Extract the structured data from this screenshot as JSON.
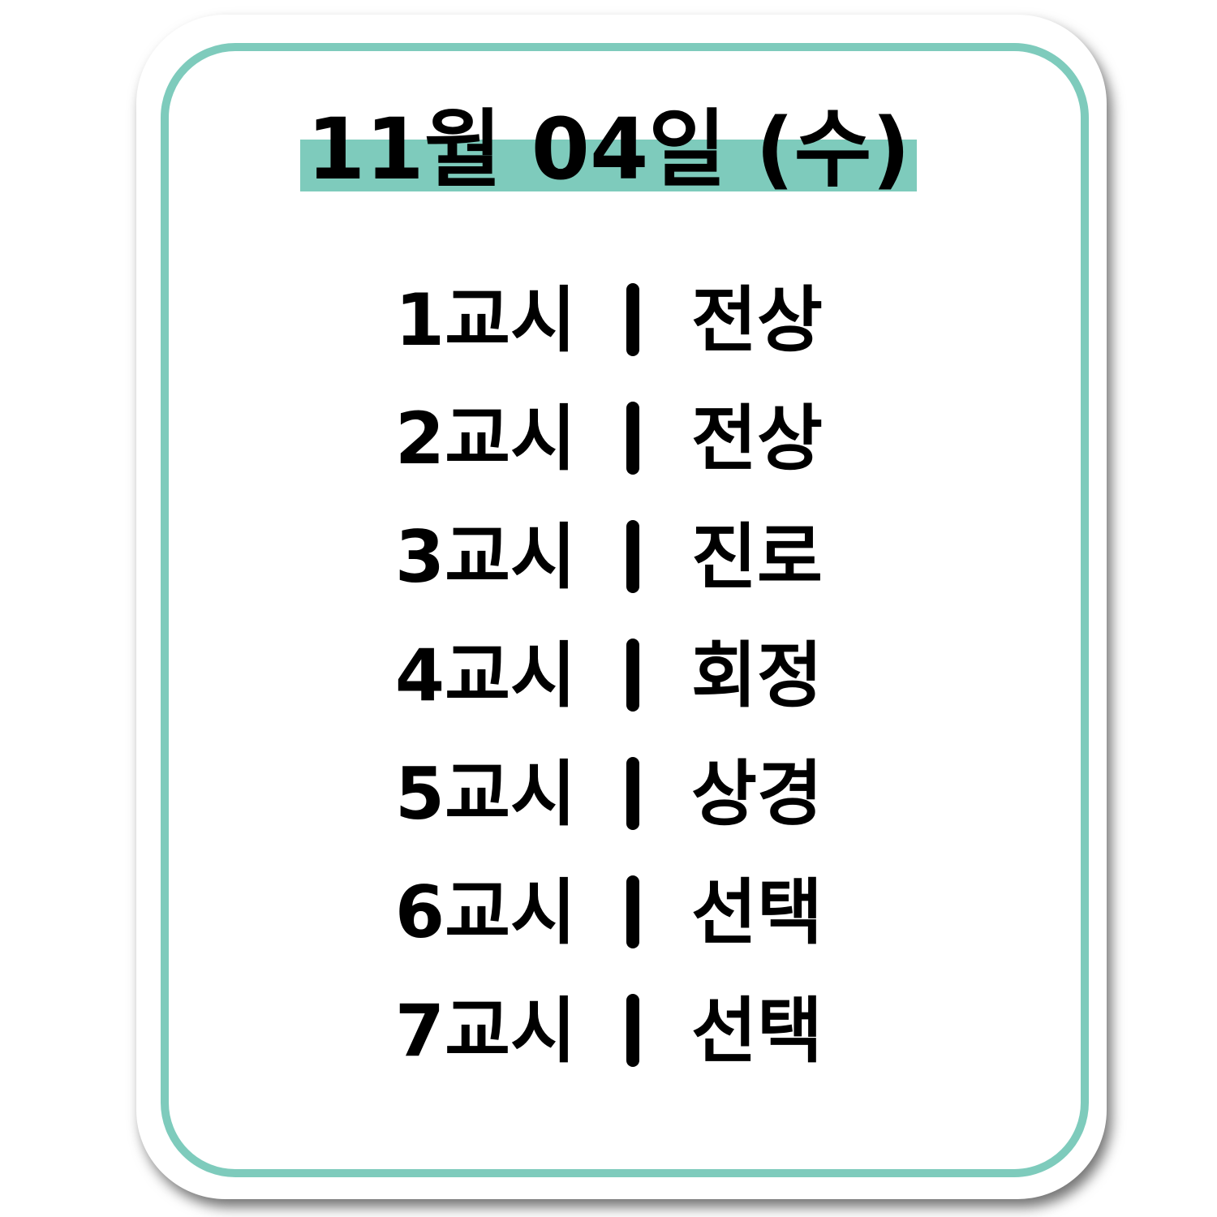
{
  "header": {
    "date": "11월 04일 (수)"
  },
  "colors": {
    "accent": "#7ecbbc",
    "text": "#000000",
    "background": "#ffffff"
  },
  "schedule": [
    {
      "period": "1교시",
      "subject": "전상"
    },
    {
      "period": "2교시",
      "subject": "전상"
    },
    {
      "period": "3교시",
      "subject": "진로"
    },
    {
      "period": "4교시",
      "subject": "회정"
    },
    {
      "period": "5교시",
      "subject": "상경"
    },
    {
      "period": "6교시",
      "subject": "선택"
    },
    {
      "period": "7교시",
      "subject": "선택"
    }
  ]
}
